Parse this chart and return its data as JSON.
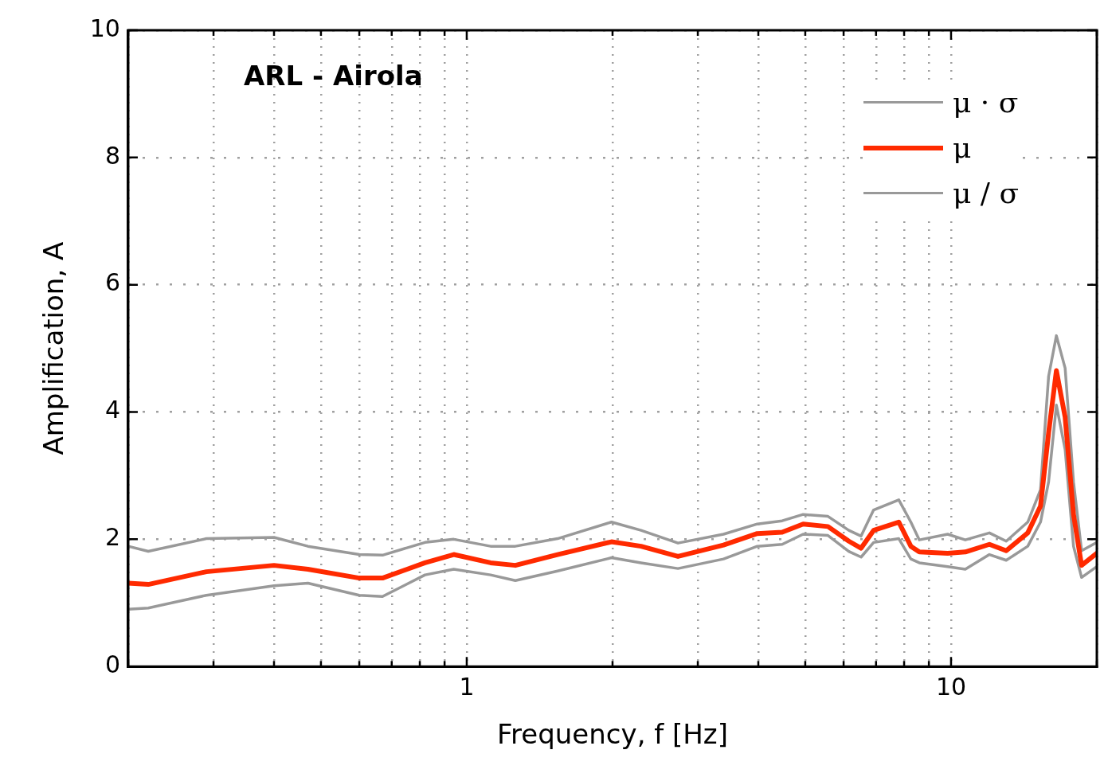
{
  "chart_data": {
    "type": "line",
    "title": "ARL - Airola",
    "xlabel": "Frequency, f [Hz]",
    "ylabel": "Amplification, A",
    "log": "x",
    "xlim": [
      0.2,
      20
    ],
    "ylim": [
      0,
      10
    ],
    "xticks": [
      {
        "value": 0.2,
        "label": null
      },
      {
        "value": 0.3,
        "label": null
      },
      {
        "value": 0.4,
        "label": null
      },
      {
        "value": 0.5,
        "label": null
      },
      {
        "value": 0.6,
        "label": null
      },
      {
        "value": 0.7,
        "label": null
      },
      {
        "value": 0.8,
        "label": null
      },
      {
        "value": 0.9,
        "label": null
      },
      1,
      {
        "value": 2,
        "label": null
      },
      {
        "value": 3,
        "label": null
      },
      {
        "value": 4,
        "label": null
      },
      {
        "value": 5,
        "label": null
      },
      {
        "value": 6,
        "label": null
      },
      {
        "value": 7,
        "label": null
      },
      {
        "value": 8,
        "label": null
      },
      {
        "value": 9,
        "label": null
      },
      10,
      {
        "value": 20,
        "label": null
      }
    ],
    "yticks": [
      0,
      2,
      4,
      6,
      8,
      10
    ],
    "grid": true,
    "legend": "top right",
    "marker": "none",
    "line_style": "solid",
    "x": [
      0.2,
      0.22,
      0.29,
      0.4,
      0.47,
      0.6,
      0.67,
      0.82,
      0.94,
      1.12,
      1.26,
      1.54,
      1.99,
      2.29,
      2.73,
      3.39,
      3.98,
      4.48,
      4.95,
      5.57,
      6.15,
      6.52,
      6.92,
      7.8,
      8.26,
      8.6,
      9.84,
      10.7,
      12.0,
      13.0,
      14.4,
      15.3,
      15.9,
      16.5,
      17.2,
      17.9,
      18.6,
      20
    ],
    "series": [
      {
        "name": "μ · σ",
        "color": "#999999",
        "values": [
          1.89,
          1.81,
          2.01,
          2.03,
          1.89,
          1.76,
          1.75,
          1.95,
          2.0,
          1.89,
          1.89,
          2.01,
          2.27,
          2.14,
          1.94,
          2.08,
          2.24,
          2.29,
          2.39,
          2.36,
          2.14,
          2.05,
          2.46,
          2.62,
          2.27,
          1.99,
          2.08,
          1.99,
          2.1,
          1.97,
          2.27,
          2.78,
          4.56,
          5.2,
          4.69,
          2.9,
          1.82,
          1.95
        ]
      },
      {
        "name": "μ",
        "color": "#ff2a00",
        "values": [
          1.31,
          1.29,
          1.49,
          1.59,
          1.53,
          1.39,
          1.39,
          1.63,
          1.76,
          1.63,
          1.59,
          1.76,
          1.96,
          1.89,
          1.73,
          1.91,
          2.09,
          2.11,
          2.24,
          2.2,
          1.97,
          1.86,
          2.14,
          2.27,
          1.89,
          1.8,
          1.78,
          1.8,
          1.92,
          1.82,
          2.1,
          2.52,
          3.67,
          4.65,
          3.92,
          2.39,
          1.59,
          1.78
        ]
      },
      {
        "name": "μ / σ",
        "color": "#999999",
        "values": [
          0.9,
          0.92,
          1.12,
          1.27,
          1.31,
          1.12,
          1.1,
          1.44,
          1.53,
          1.44,
          1.35,
          1.5,
          1.71,
          1.63,
          1.54,
          1.69,
          1.89,
          1.92,
          2.08,
          2.06,
          1.81,
          1.72,
          1.95,
          2.01,
          1.69,
          1.63,
          1.57,
          1.53,
          1.76,
          1.67,
          1.89,
          2.27,
          2.9,
          4.11,
          3.41,
          1.89,
          1.4,
          1.57
        ]
      }
    ]
  }
}
